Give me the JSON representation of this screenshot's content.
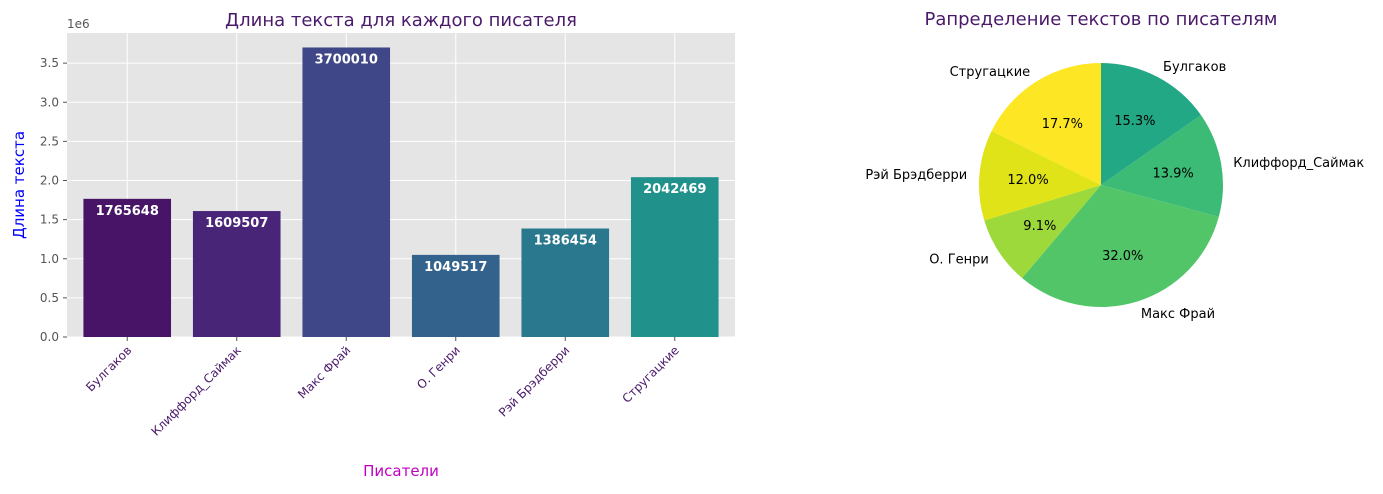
{
  "chart_data": [
    {
      "type": "bar",
      "title": "Длина текста для каждого писателя",
      "xlabel": "Писатели",
      "ylabel": "Длина текста",
      "y_offset_label": "1e6",
      "ylim": [
        0,
        3.885
      ],
      "yticks": [
        "0.0",
        "0.5",
        "1.0",
        "1.5",
        "2.0",
        "2.5",
        "3.0",
        "3.5"
      ],
      "ytick_values": [
        0,
        0.5,
        1.0,
        1.5,
        2.0,
        2.5,
        3.0,
        3.5
      ],
      "categories": [
        "Булгаков",
        "Клиффорд_Саймак",
        "Макс Фрай",
        "О. Генри",
        "Рэй Брэдберри",
        "Стругацкие"
      ],
      "values": [
        1765648,
        1609507,
        3700010,
        1049517,
        1386454,
        2042469
      ],
      "value_labels": [
        "1765648",
        "1609507",
        "3700010",
        "1049517",
        "1386454",
        "2042469"
      ],
      "colors": [
        "#481467",
        "#482576",
        "#3f4788",
        "#33638d",
        "#2a788e",
        "#21918c"
      ],
      "grid": true,
      "title_color": "#4a1a6a",
      "xlabel_color": "#c000c0",
      "ylabel_color": "#0000ff",
      "xtick_color": "#4a1a6a"
    },
    {
      "type": "pie",
      "title": "Рапределение текстов по писателям",
      "labels": [
        "Булгаков",
        "Клиффорд_Саймак",
        "Макс Фрай",
        "О. Генри",
        "Рэй Брэдберри",
        "Стругацкие"
      ],
      "values": [
        15.3,
        13.9,
        32.0,
        9.1,
        12.0,
        17.7
      ],
      "pct_labels": [
        "15.3%",
        "13.9%",
        "32.0%",
        "9.1%",
        "12.0%",
        "17.7%"
      ],
      "colors": [
        "#22a884",
        "#3bbb75",
        "#52c569",
        "#9dd93b",
        "#dfe318",
        "#fde725"
      ],
      "start": "top",
      "direction": "clockwise",
      "title_color": "#4a1a6a"
    }
  ]
}
